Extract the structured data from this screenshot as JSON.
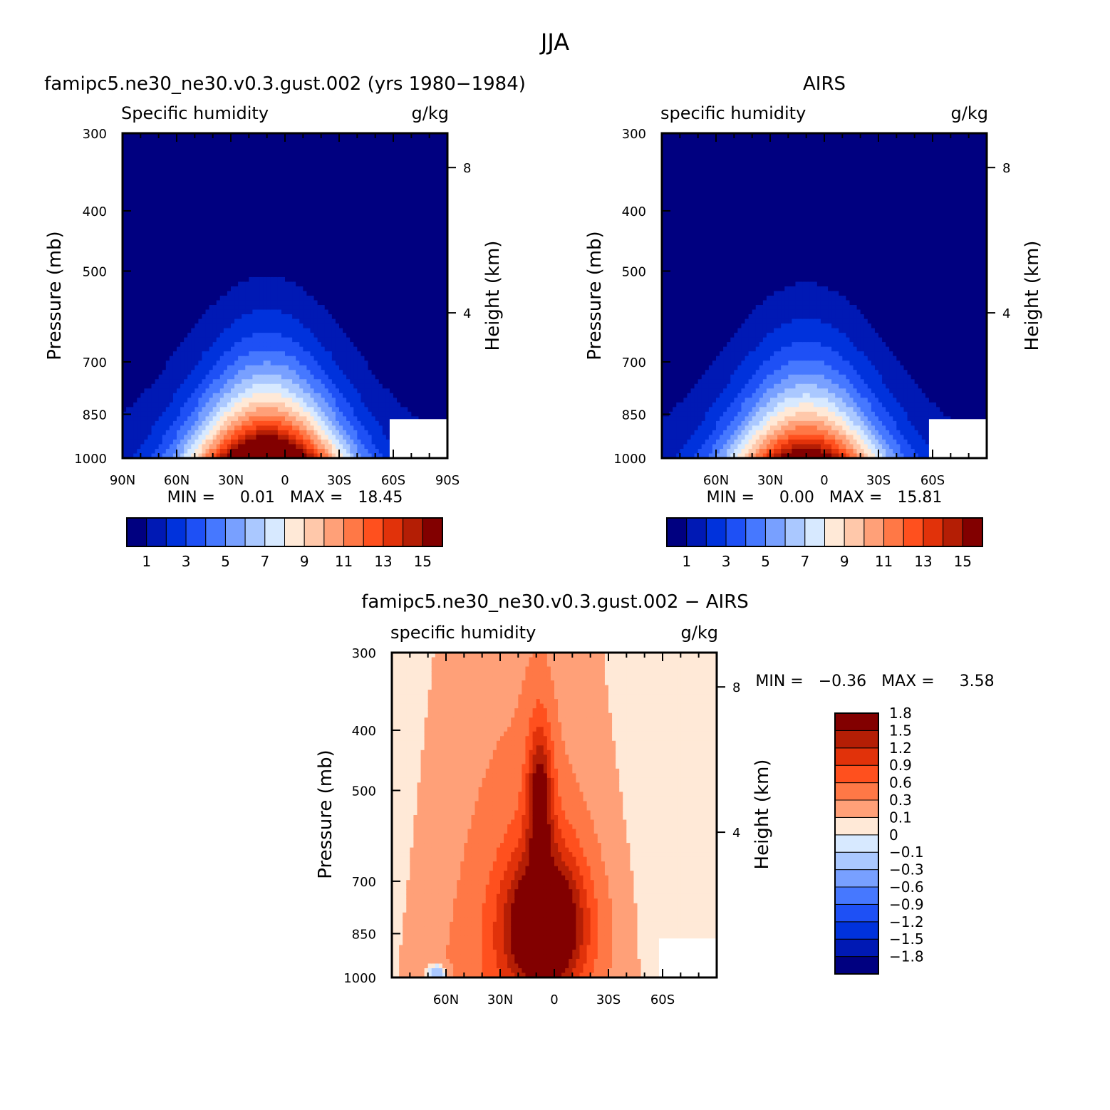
{
  "figure": {
    "title": "JJA"
  },
  "chart_data": [
    {
      "type": "heatmap",
      "title": "famipc5.ne30_ne30.v0.3.gust.002 (yrs 1980−1984)",
      "subtitle_left": "Specific humidity",
      "subtitle_right": "g/kg",
      "ylabel": "Pressure (mb)",
      "ylabel_right": "Height (km)",
      "y_ticks": [
        "300",
        "400",
        "500",
        "700",
        "850",
        "1000"
      ],
      "y_tick_values": [
        300,
        400,
        500,
        700,
        850,
        1000
      ],
      "y_right_ticks": [
        "8",
        "4"
      ],
      "y_right_tick_values": [
        8,
        4
      ],
      "x_ticks": [
        "90N",
        "60N",
        "30N",
        "0",
        "30S",
        "60S",
        "90S"
      ],
      "x_tick_values": [
        90,
        60,
        30,
        0,
        -30,
        -60,
        -90
      ],
      "xlim": [
        90,
        -90
      ],
      "ylim": [
        300,
        1000
      ],
      "min_max_text": "MIN =     0.01   MAX =   18.45",
      "peak": {
        "lat": 10,
        "value": 18.45
      },
      "colorbar": {
        "orientation": "horizontal",
        "levels": [
          1,
          2,
          3,
          4,
          5,
          6,
          7,
          8,
          9,
          10,
          11,
          12,
          13,
          14,
          15
        ],
        "labels": [
          "1",
          "3",
          "5",
          "7",
          "9",
          "11",
          "13",
          "15"
        ],
        "colors": [
          "#000080",
          "#0019b4",
          "#0032dc",
          "#1e50f5",
          "#4678ff",
          "#78a0ff",
          "#aac8ff",
          "#d7e9ff",
          "#ffe9d7",
          "#ffc8aa",
          "#ffa078",
          "#ff7846",
          "#ff501e",
          "#e1320a",
          "#b41e05",
          "#820000"
        ]
      }
    },
    {
      "type": "heatmap",
      "title": "AIRS",
      "subtitle_left": "specific humidity",
      "subtitle_right": "g/kg",
      "ylabel": "Pressure (mb)",
      "ylabel_right": "Height (km)",
      "y_ticks": [
        "300",
        "400",
        "500",
        "700",
        "850",
        "1000"
      ],
      "y_tick_values": [
        300,
        400,
        500,
        700,
        850,
        1000
      ],
      "y_right_ticks": [
        "8",
        "4"
      ],
      "y_right_tick_values": [
        8,
        4
      ],
      "x_ticks": [
        "60N",
        "30N",
        "0",
        "30S",
        "60S"
      ],
      "x_tick_values": [
        60,
        30,
        0,
        -30,
        -60
      ],
      "xlim": [
        90,
        -90
      ],
      "ylim": [
        300,
        1000
      ],
      "min_max_text": "MIN =     0.00   MAX =   15.81",
      "peak": {
        "lat": 10,
        "value": 15.81
      },
      "colorbar": {
        "orientation": "horizontal",
        "levels": [
          1,
          2,
          3,
          4,
          5,
          6,
          7,
          8,
          9,
          10,
          11,
          12,
          13,
          14,
          15
        ],
        "labels": [
          "1",
          "3",
          "5",
          "7",
          "9",
          "11",
          "13",
          "15"
        ],
        "colors": [
          "#000080",
          "#0019b4",
          "#0032dc",
          "#1e50f5",
          "#4678ff",
          "#78a0ff",
          "#aac8ff",
          "#d7e9ff",
          "#ffe9d7",
          "#ffc8aa",
          "#ffa078",
          "#ff7846",
          "#ff501e",
          "#e1320a",
          "#b41e05",
          "#820000"
        ]
      }
    },
    {
      "type": "heatmap",
      "title": "famipc5.ne30_ne30.v0.3.gust.002 − AIRS",
      "subtitle_left": "specific humidity",
      "subtitle_right": "g/kg",
      "ylabel": "Pressure (mb)",
      "ylabel_right": "Height (km)",
      "y_ticks": [
        "300",
        "400",
        "500",
        "700",
        "850",
        "1000"
      ],
      "y_tick_values": [
        300,
        400,
        500,
        700,
        850,
        1000
      ],
      "y_right_ticks": [
        "8",
        "4"
      ],
      "y_right_tick_values": [
        8,
        4
      ],
      "x_ticks": [
        "60N",
        "30N",
        "0",
        "30S",
        "60S"
      ],
      "x_tick_values": [
        60,
        30,
        0,
        -30,
        -60
      ],
      "xlim": [
        90,
        -90
      ],
      "ylim": [
        300,
        1000
      ],
      "min_max_text": "MIN =   −0.36   MAX =     3.58",
      "colorbar": {
        "orientation": "vertical",
        "levels": [
          -1.8,
          -1.5,
          -1.2,
          -0.9,
          -0.6,
          -0.3,
          -0.1,
          0,
          0.1,
          0.3,
          0.6,
          0.9,
          1.2,
          1.5,
          1.8
        ],
        "labels": [
          "−1.8",
          "−1.5",
          "−1.2",
          "−0.9",
          "−0.6",
          "−0.3",
          "−0.1",
          "0",
          "0.1",
          "0.3",
          "0.6",
          "0.9",
          "1.2",
          "1.5",
          "1.8"
        ],
        "colors": [
          "#000080",
          "#0019b4",
          "#0032dc",
          "#1e50f5",
          "#4678ff",
          "#78a0ff",
          "#aac8ff",
          "#d7e9ff",
          "#ffe9d7",
          "#ffa078",
          "#ff7846",
          "#ff501e",
          "#e1320a",
          "#b41e05",
          "#820000"
        ]
      }
    }
  ]
}
